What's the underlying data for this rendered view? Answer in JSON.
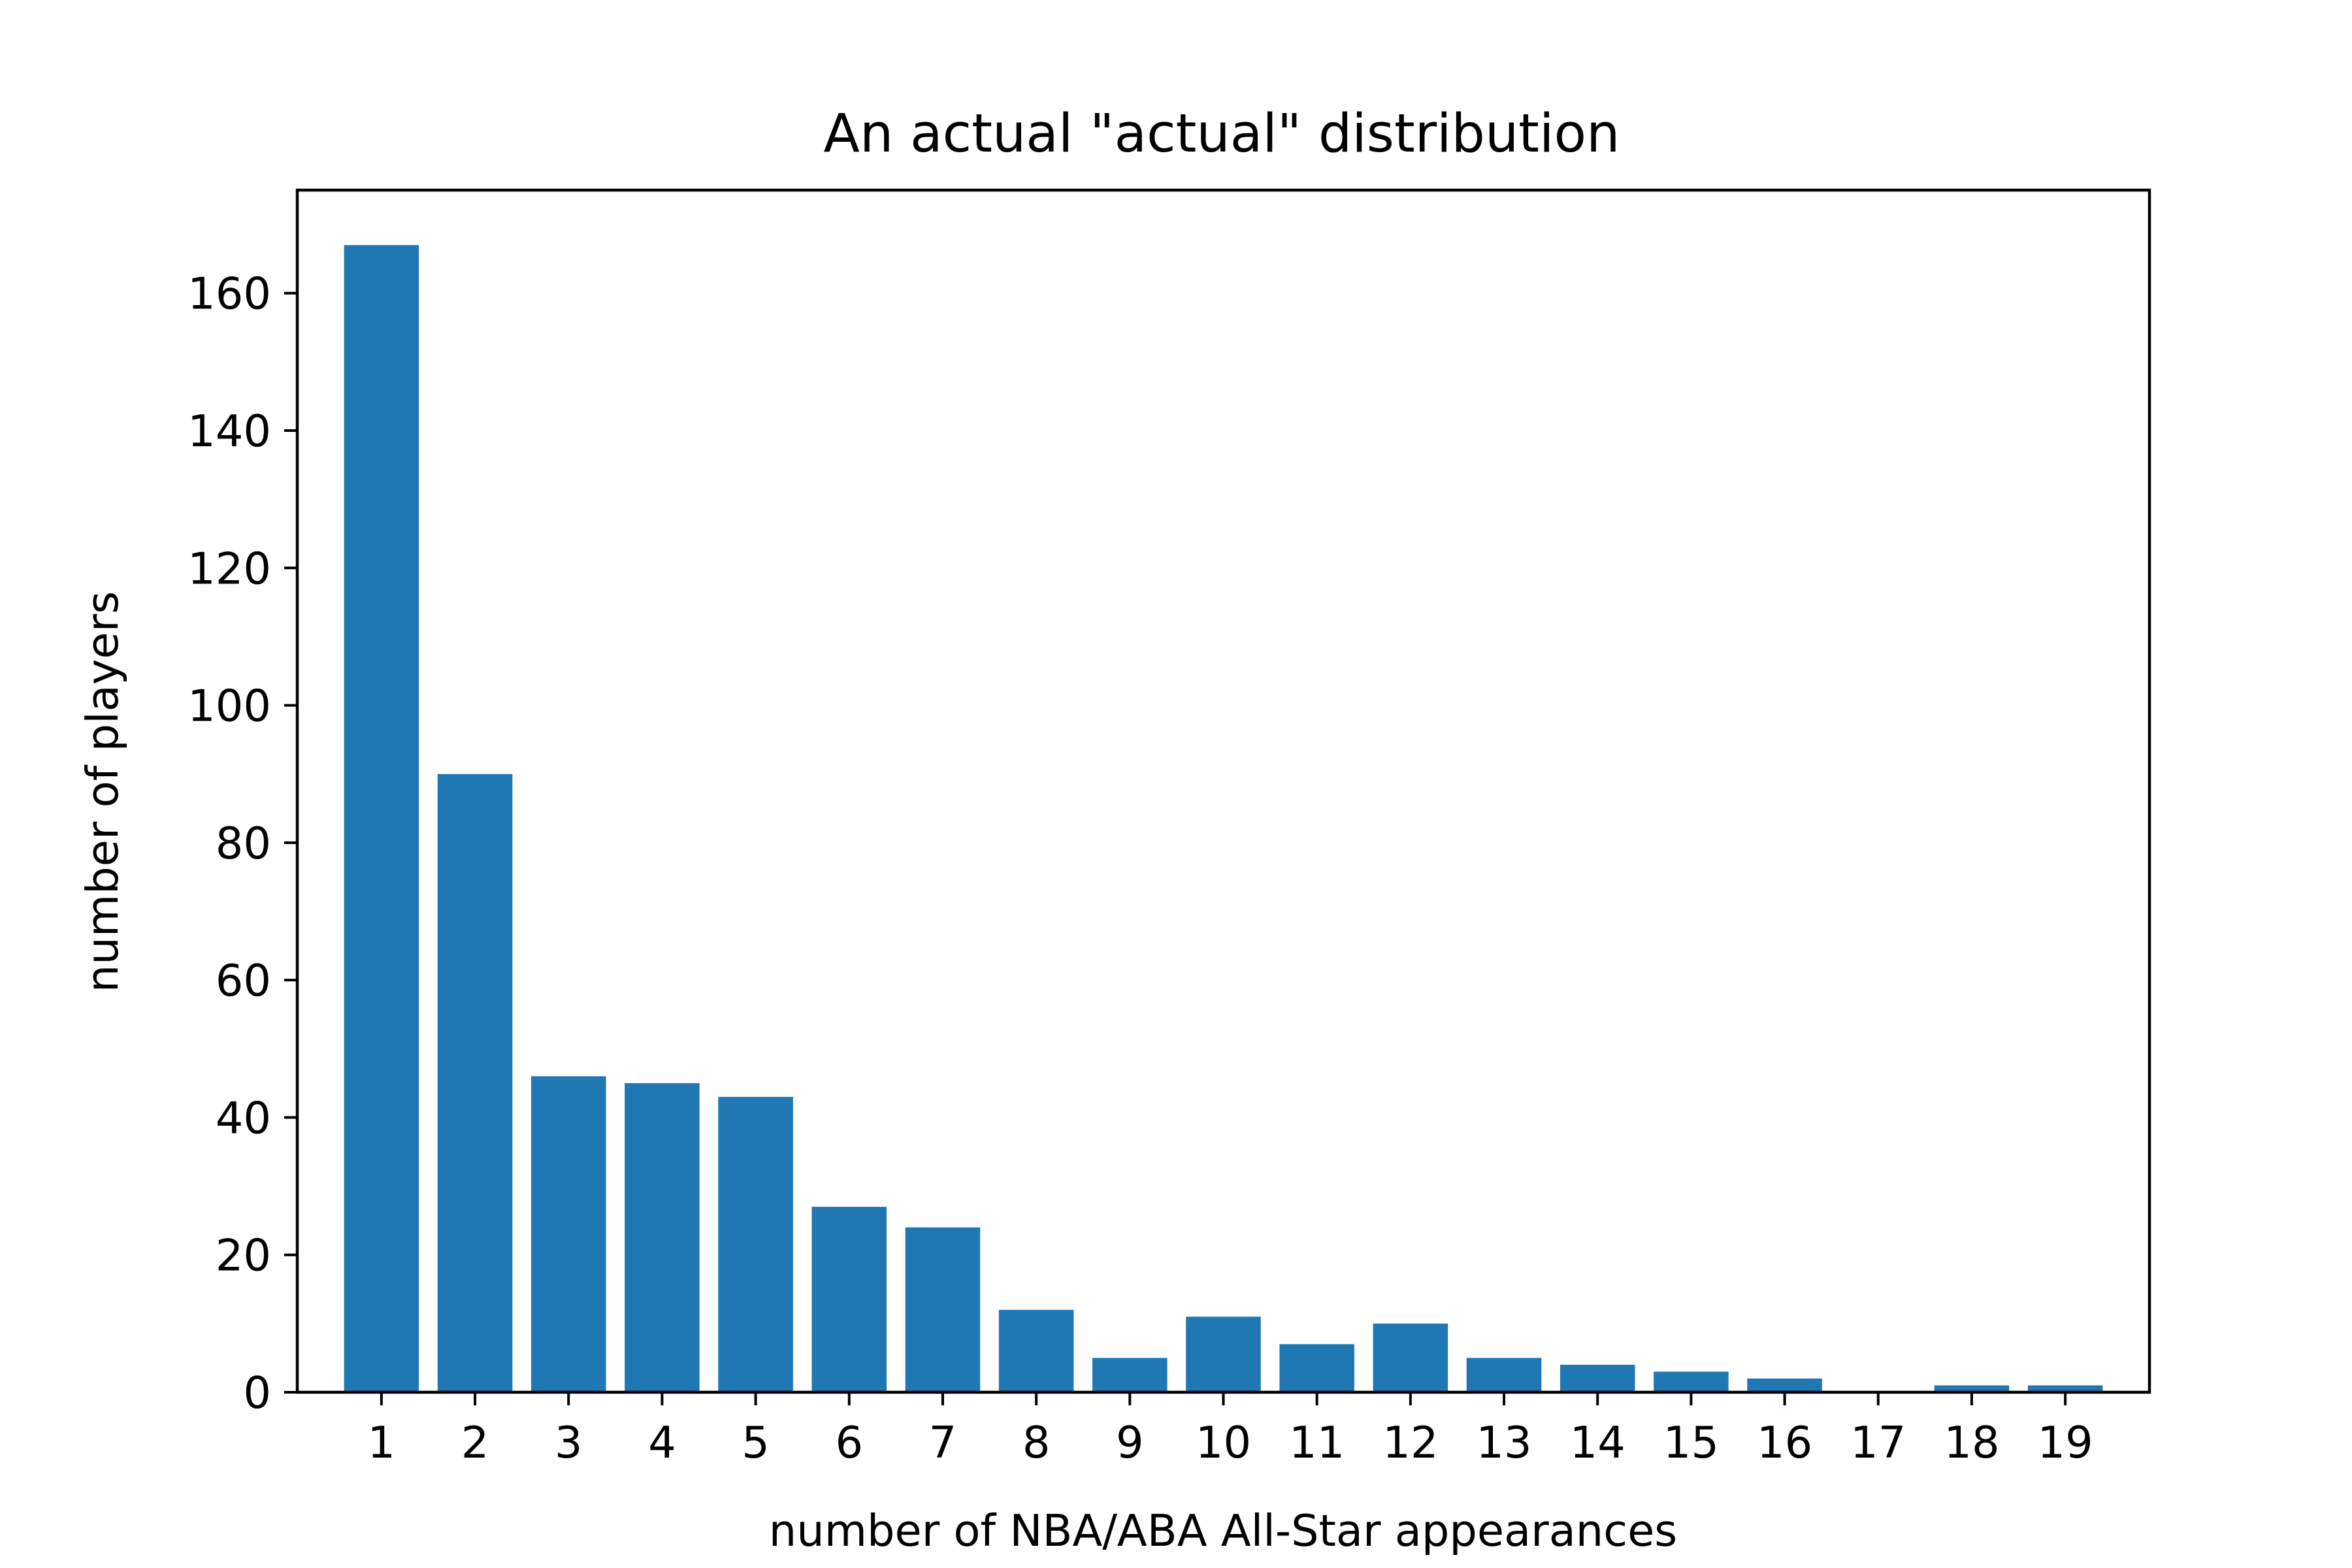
{
  "chart_data": {
    "type": "bar",
    "title": "An actual \"actual\" distribution",
    "xlabel": "number of NBA/ABA All-Star appearances",
    "ylabel": "number of players",
    "categories": [
      "1",
      "2",
      "3",
      "4",
      "5",
      "6",
      "7",
      "8",
      "9",
      "10",
      "11",
      "12",
      "13",
      "14",
      "15",
      "16",
      "17",
      "18",
      "19"
    ],
    "values": [
      167,
      90,
      46,
      45,
      43,
      27,
      24,
      12,
      5,
      11,
      7,
      10,
      5,
      4,
      3,
      2,
      0,
      1,
      1
    ],
    "ylim": [
      0,
      175
    ],
    "yticks": [
      0,
      20,
      40,
      60,
      80,
      100,
      120,
      140,
      160
    ],
    "grid": false,
    "bar_color": "#1f77b4"
  }
}
